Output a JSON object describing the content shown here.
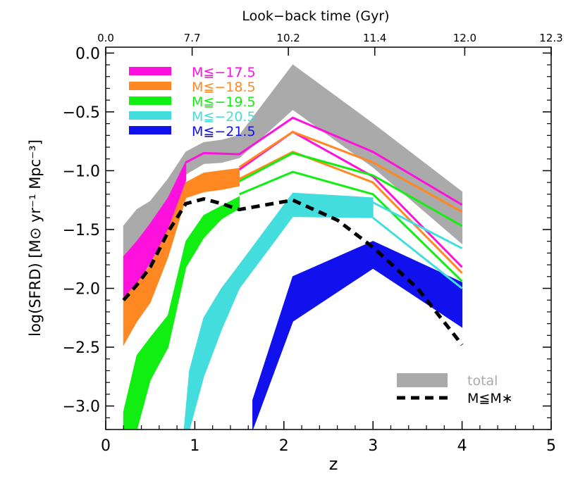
{
  "chart_data": {
    "type": "area",
    "xlabel": "z",
    "ylabel": "log(SFRD)  [M⊙ yr⁻¹ Mpc⁻³]",
    "top_axis_label": "Look−back time (Gyr)",
    "xlim": [
      0,
      5
    ],
    "ylim": [
      -3.2,
      0.05
    ],
    "x_tick_values": [
      0,
      1,
      2,
      3,
      4,
      5
    ],
    "x_tick_labels": [
      "0",
      "1",
      "2",
      "3",
      "4",
      "5"
    ],
    "y_tick_values": [
      0.0,
      -0.5,
      -1.0,
      -1.5,
      -2.0,
      -2.5,
      -3.0
    ],
    "y_tick_labels": [
      "0.0",
      "−0.5",
      "−1.0",
      "−1.5",
      "−2.0",
      "−2.5",
      "−3.0"
    ],
    "top_ticks": [
      {
        "z": 0.0,
        "label": "0.0"
      },
      {
        "z": 0.97,
        "label": "7.7"
      },
      {
        "z": 2.05,
        "label": "10.2"
      },
      {
        "z": 3.02,
        "label": "11.4"
      },
      {
        "z": 4.03,
        "label": "12.0"
      },
      {
        "z": 5.0,
        "label": "12.3"
      }
    ],
    "bands": [
      {
        "name": "total",
        "color": "#aaaaaa",
        "x": [
          0.2,
          0.35,
          0.5,
          0.7,
          0.9,
          1.1,
          1.3,
          1.5,
          2.1,
          3.0,
          4.0
        ],
        "upper": [
          -1.47,
          -1.33,
          -1.26,
          -1.07,
          -0.84,
          -0.76,
          -0.74,
          -0.7,
          -0.1,
          -0.6,
          -1.18
        ],
        "lower": [
          -1.73,
          -1.63,
          -1.53,
          -1.3,
          -1.03,
          -0.94,
          -0.93,
          -0.89,
          -0.48,
          -0.97,
          -1.62
        ]
      },
      {
        "name": "M≦−17.5",
        "color": "#ff11dd",
        "x": [
          0.2,
          0.35,
          0.5,
          0.7,
          0.9
        ],
        "upper": [
          -1.73,
          -1.6,
          -1.45,
          -1.23,
          -0.92
        ],
        "lower": [
          -2.1,
          -1.96,
          -1.78,
          -1.5,
          -1.08
        ]
      },
      {
        "name": "M≦−18.5",
        "color": "#ff8822",
        "x": [
          0.2,
          0.35,
          0.5,
          0.7,
          0.9,
          1.1,
          1.3,
          1.5
        ],
        "upper": [
          -2.08,
          -1.96,
          -1.8,
          -1.5,
          -1.1,
          -1.02,
          -1.0,
          -0.98
        ],
        "lower": [
          -2.48,
          -2.28,
          -2.12,
          -1.73,
          -1.23,
          -1.18,
          -1.16,
          -1.13
        ]
      },
      {
        "name": "M≦−19.5",
        "color": "#11ee11",
        "x": [
          0.2,
          0.35,
          0.5,
          0.7,
          0.9,
          1.1,
          1.3,
          1.5
        ],
        "upper": [
          -3.05,
          -2.57,
          -2.42,
          -2.23,
          -1.6,
          -1.38,
          -1.3,
          -1.22
        ],
        "lower": [
          -3.2,
          -3.2,
          -2.78,
          -2.5,
          -1.82,
          -1.57,
          -1.41,
          -1.32
        ]
      },
      {
        "name": "M≦−20.5",
        "color": "#44dddd",
        "x": [
          0.88,
          0.94,
          1.1,
          1.3,
          1.5,
          2.1,
          3.0
        ],
        "upper": [
          -3.2,
          -2.7,
          -2.25,
          -2.0,
          -1.8,
          -1.19,
          -1.23
        ],
        "lower": [
          -3.2,
          -3.2,
          -2.75,
          -2.35,
          -2.0,
          -1.39,
          -1.4
        ]
      },
      {
        "name": "M≦−21.5",
        "color": "#1111ee",
        "x": [
          1.65,
          2.1,
          3.0,
          4.0
        ],
        "upper": [
          -2.95,
          -1.9,
          -1.6,
          -1.95
        ],
        "lower": [
          -3.2,
          -2.28,
          -1.83,
          -2.33
        ]
      }
    ],
    "outline_lines": [
      {
        "series": "M≦−17.5",
        "color": "#ff11dd",
        "x": [
          0.9,
          1.1,
          1.5,
          2.1,
          3.0,
          4.0
        ],
        "y": [
          -0.93,
          -0.85,
          -0.86,
          -0.55,
          -0.84,
          -1.29
        ]
      },
      {
        "series": "M≦−17.5",
        "color": "#ff11dd",
        "x": [
          1.5,
          2.1,
          3.0,
          4.0
        ],
        "y": [
          -0.99,
          -0.67,
          -1.05,
          -1.82
        ]
      },
      {
        "series": "M≦−18.5",
        "color": "#ff8822",
        "x": [
          1.5,
          2.1,
          3.0,
          4.0
        ],
        "y": [
          -0.97,
          -0.67,
          -0.93,
          -1.35
        ]
      },
      {
        "series": "M≦−18.5",
        "color": "#ff8822",
        "x": [
          1.5,
          2.1,
          3.0,
          4.0
        ],
        "y": [
          -1.07,
          -0.84,
          -1.1,
          -1.87
        ]
      },
      {
        "series": "M≦−19.5",
        "color": "#11ee11",
        "x": [
          1.5,
          2.1,
          3.0,
          4.0
        ],
        "y": [
          -1.09,
          -0.85,
          -1.04,
          -1.47
        ]
      },
      {
        "series": "M≦−19.5",
        "color": "#11ee11",
        "x": [
          1.5,
          2.1,
          3.0,
          4.0
        ],
        "y": [
          -1.2,
          -1.01,
          -1.2,
          -1.94
        ]
      },
      {
        "series": "M≦−20.5",
        "color": "#44dddd",
        "x": [
          3.0,
          4.0
        ],
        "y": [
          -1.27,
          -1.66
        ]
      },
      {
        "series": "M≦−20.5",
        "color": "#44dddd",
        "x": [
          3.0,
          4.0
        ],
        "y": [
          -1.4,
          -2.0
        ]
      }
    ],
    "dashed_line": {
      "name": "M≦M∗",
      "color": "#000000",
      "x": [
        0.2,
        0.35,
        0.5,
        0.7,
        0.9,
        1.1,
        1.3,
        1.5,
        2.1,
        2.6,
        3.0,
        3.5,
        4.0
      ],
      "y": [
        -2.1,
        -1.97,
        -1.82,
        -1.52,
        -1.28,
        -1.24,
        -1.28,
        -1.33,
        -1.25,
        -1.42,
        -1.65,
        -2.0,
        -2.48
      ]
    },
    "legend_top": [
      {
        "label": "M≦−17.5",
        "color": "#ff11dd"
      },
      {
        "label": "M≦−18.5",
        "color": "#ff8822"
      },
      {
        "label": "M≦−19.5",
        "color": "#11ee11"
      },
      {
        "label": "M≦−20.5",
        "color": "#44dddd"
      },
      {
        "label": "M≦−21.5",
        "color": "#1111ee"
      }
    ],
    "legend_bottom": [
      {
        "label": "total",
        "color": "#aaaaaa",
        "style": "band"
      },
      {
        "label": "M≦M∗",
        "color": "#000000",
        "style": "dashed"
      }
    ],
    "legend_placement": [
      "top-left",
      "bottom-right"
    ]
  }
}
